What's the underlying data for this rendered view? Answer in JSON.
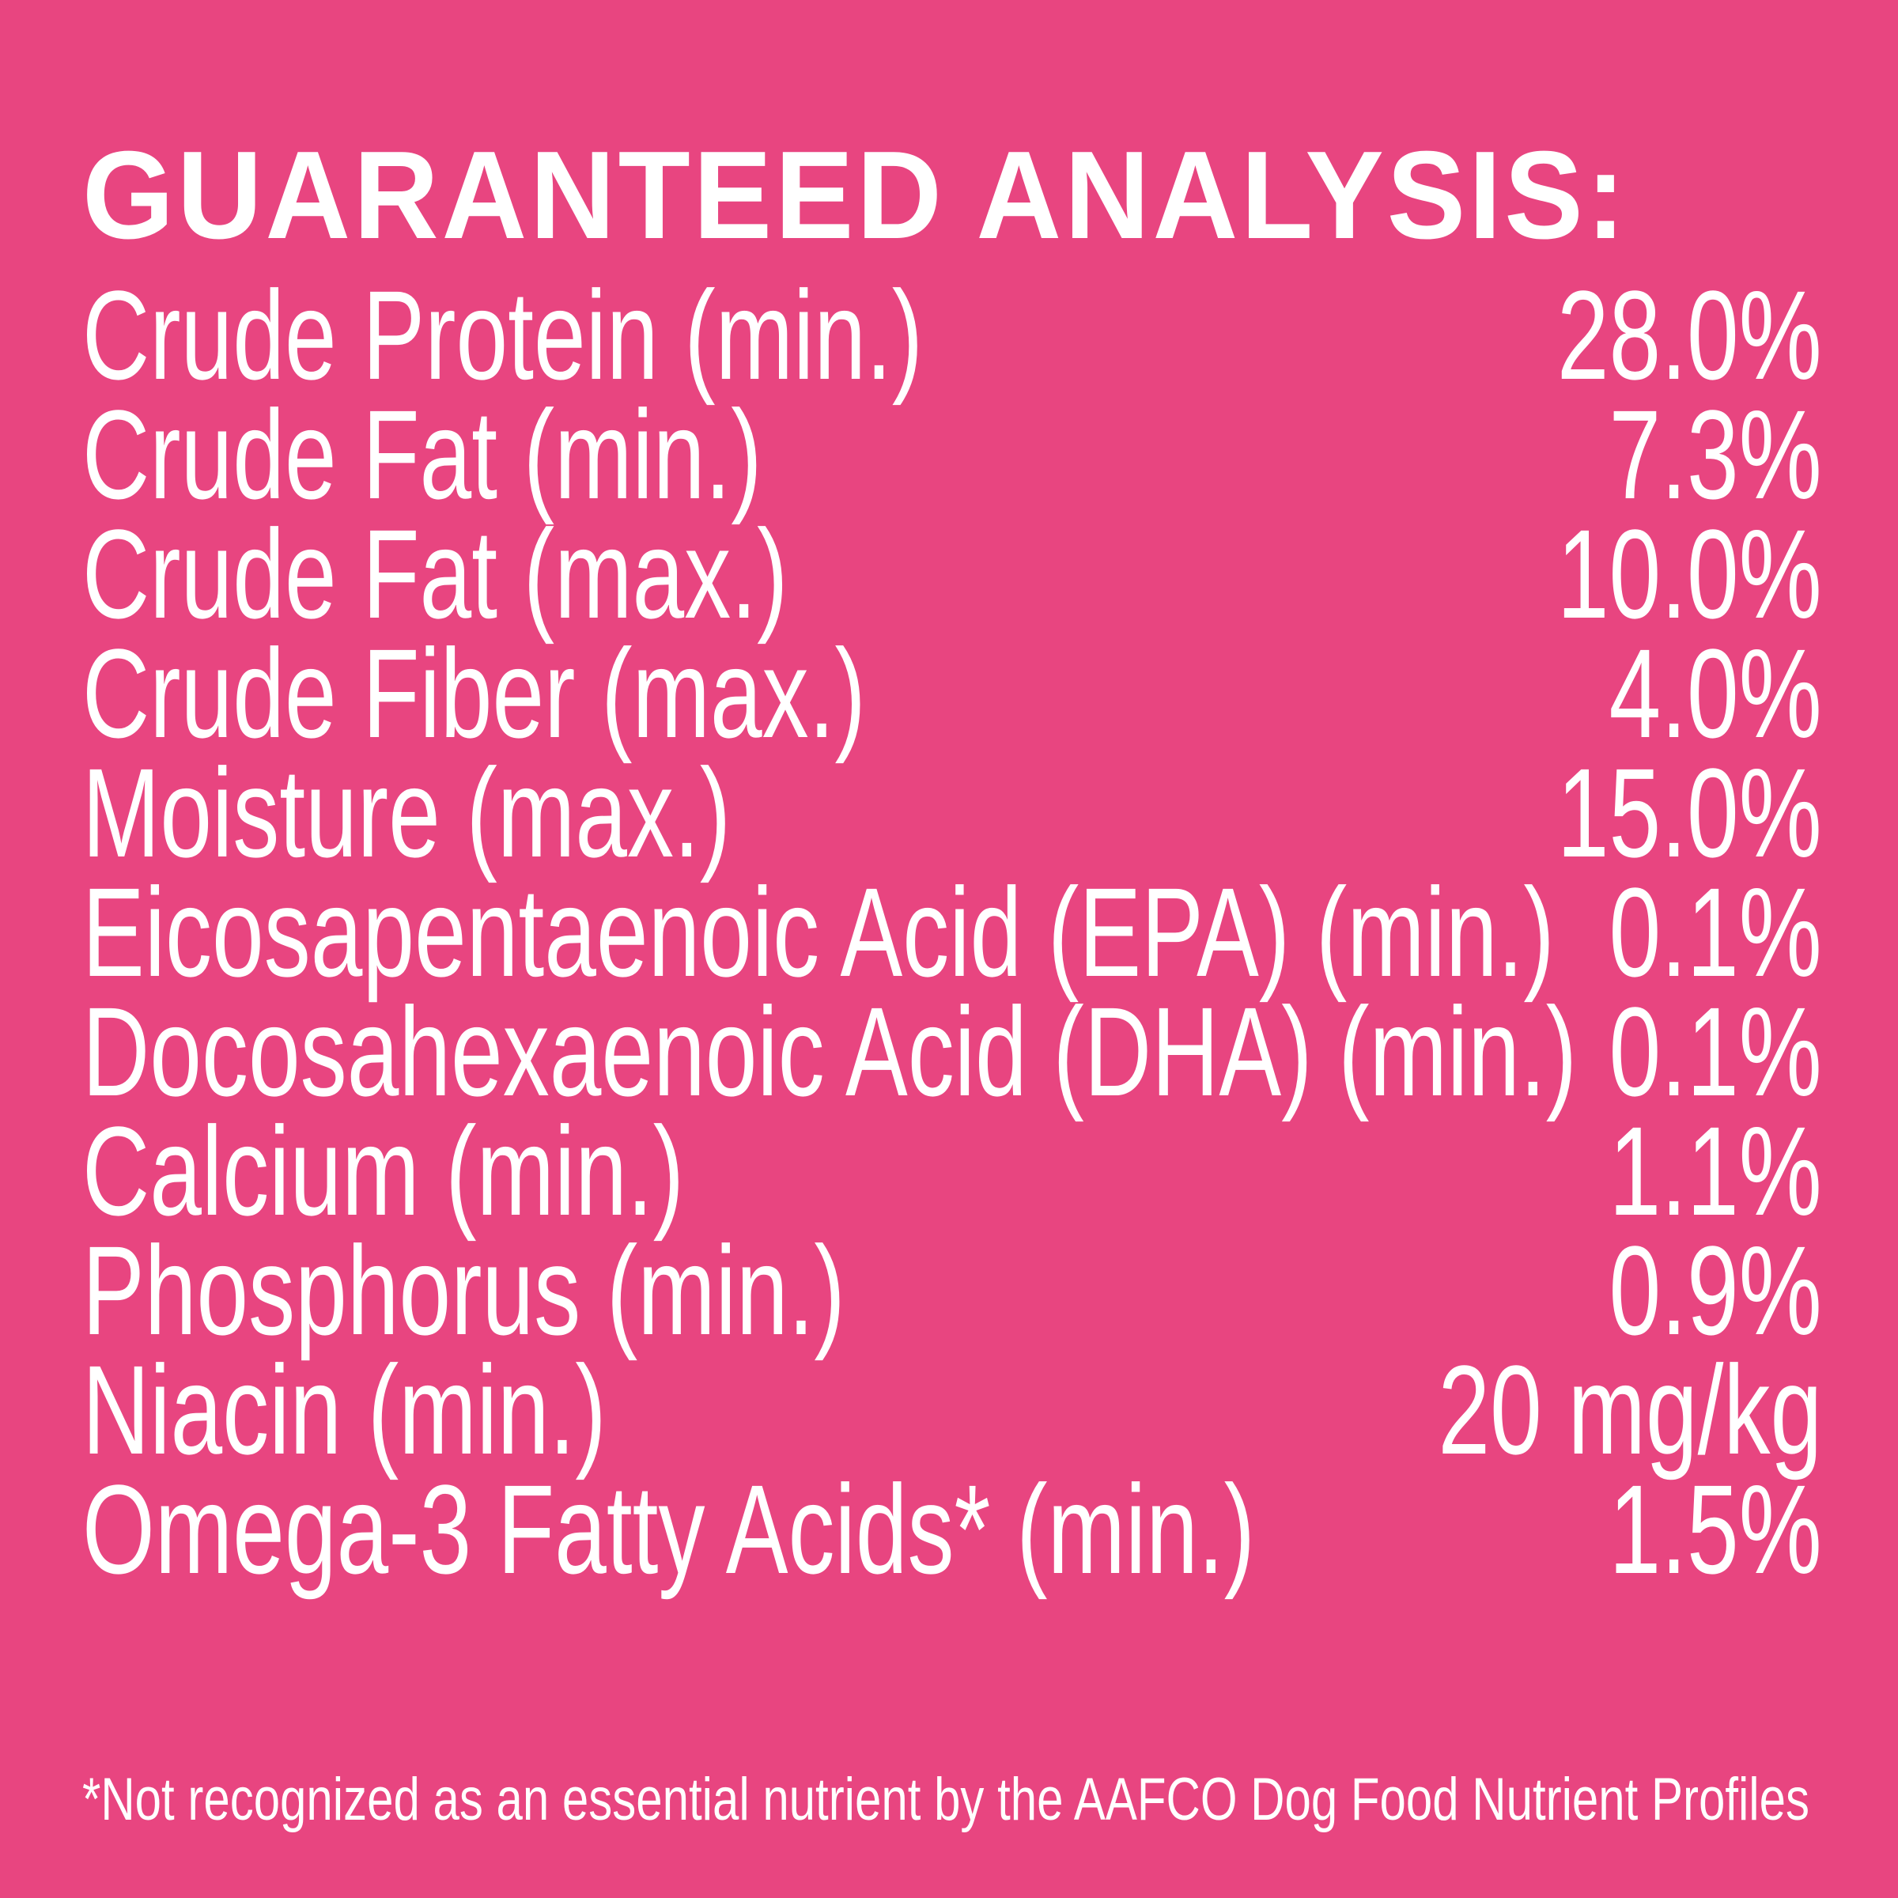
{
  "title": "GUARANTEED ANALYSIS:",
  "rows": [
    {
      "label": "Crude Protein (min.)",
      "value": "28.0%"
    },
    {
      "label": "Crude Fat (min.)",
      "value": "7.3%"
    },
    {
      "label": "Crude Fat (max.)",
      "value": "10.0%"
    },
    {
      "label": "Crude Fiber (max.)",
      "value": "4.0%"
    },
    {
      "label": "Moisture (max.)",
      "value": "15.0%"
    },
    {
      "label": "Eicosapentaenoic Acid (EPA) (min.)",
      "value": "0.1%"
    },
    {
      "label": "Docosahexaenoic Acid (DHA) (min.)",
      "value": "0.1%"
    },
    {
      "label": "Calcium (min.)",
      "value": "1.1%"
    },
    {
      "label": "Phosphorus (min.)",
      "value": "0.9%"
    },
    {
      "label": "Niacin (min.)",
      "value": "20 mg/kg"
    },
    {
      "label": "Omega-3 Fatty Acids* (min.)",
      "value": "1.5%"
    }
  ],
  "footnote": "*Not recognized as an essential nutrient by the AAFCO Dog Food Nutrient Profiles",
  "colors": {
    "background": "#E84580",
    "text": "#FFFFFF"
  }
}
